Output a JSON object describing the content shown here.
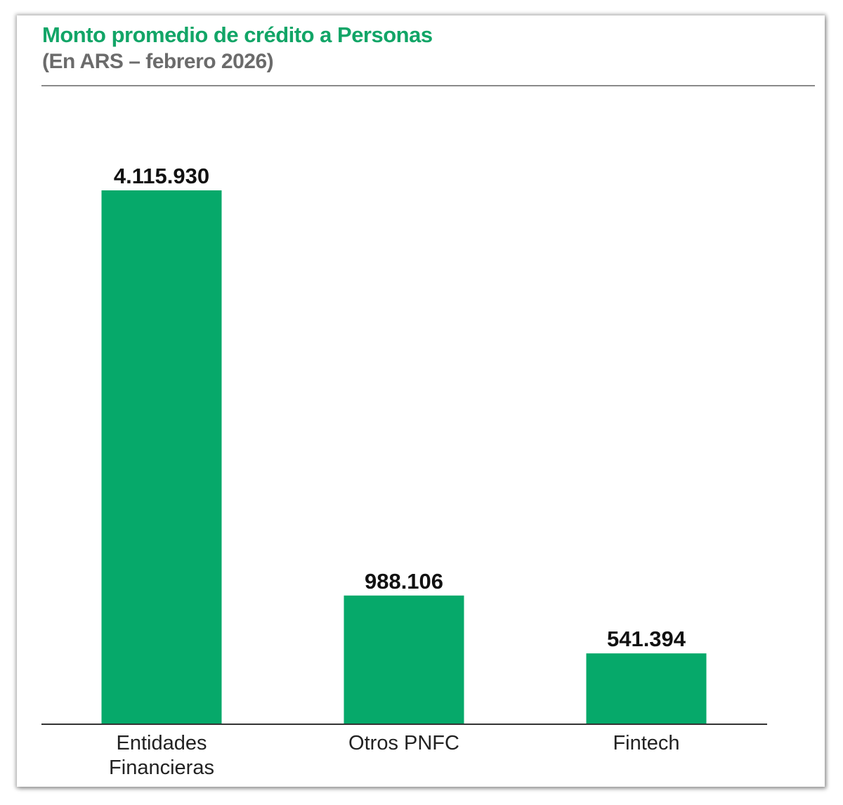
{
  "header": {
    "title": "Monto promedio de crédito a Personas",
    "subtitle": "(En ARS – febrero 2026)"
  },
  "colors": {
    "title": "#12a567",
    "subtitle": "#6b6b6b",
    "bar": "#06a96a",
    "value_label": "#111111",
    "axis": "#333333",
    "rule": "#8a8a8a"
  },
  "chart_data": {
    "type": "bar",
    "title": "Monto promedio de crédito a Personas",
    "subtitle": "(En ARS – febrero 2026)",
    "categories": [
      [
        "Entidades",
        "Financieras"
      ],
      [
        "Otros PNFC"
      ],
      [
        "Fintech"
      ]
    ],
    "values": [
      4115930,
      988106,
      541394
    ],
    "value_labels": [
      "4.115.930",
      "988.106",
      "541.394"
    ],
    "ylim": [
      0,
      4115930
    ],
    "grid": false,
    "legend": "none",
    "y_axis_visible": false
  }
}
